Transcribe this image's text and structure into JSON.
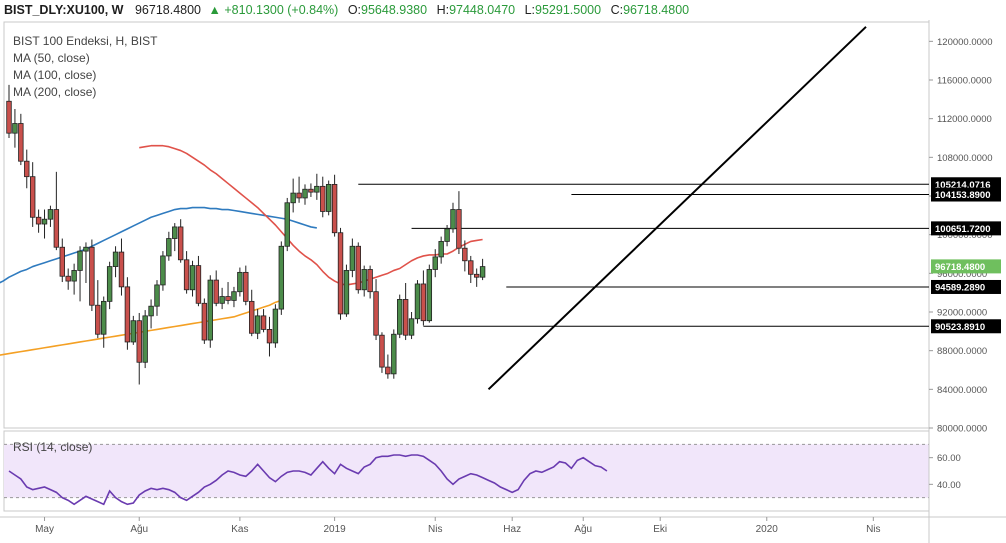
{
  "header": {
    "symbol": "BIST_DLY:XU100, W",
    "last": "96718.4800",
    "change": "+810.1300 (+0.84%)",
    "open_label": "O:",
    "open": "95648.9380",
    "high_label": "H:",
    "high": "97448.0470",
    "low_label": "L:",
    "low": "95291.5000",
    "close_label": "C:",
    "close": "96718.4800"
  },
  "legend": {
    "title": "BIST 100 Endeksi, H, BIST",
    "ma50": "MA (50, close)",
    "ma100": "MA (100, close)",
    "ma200": "MA (200, close)",
    "rsi": "RSI (14, close)"
  },
  "colors": {
    "up": "#4c8c4a",
    "down": "#c9504c",
    "ma50": "#e0524a",
    "ma100": "#2f7bbf",
    "ma200": "#f4a024",
    "rsi": "#6a3bb0",
    "rsi_band": "#f1e6fa",
    "last_tag": "#6fbf5e",
    "accent_green": "#2a9a3a"
  },
  "chart_data": {
    "type": "candlestick",
    "xlabel": "",
    "ylabel": "",
    "ylim": [
      80000,
      122000
    ],
    "y_ticks": [
      80000,
      84000,
      88000,
      92000,
      96000,
      100000,
      104000,
      108000,
      112000,
      116000,
      120000
    ],
    "y_tick_labels": [
      "80000.0000",
      "84000.0000",
      "88000.0000",
      "92000.0000",
      "96000.0000",
      "100000.0000",
      "104000.0000",
      "108000.0000",
      "112000.0000",
      "116000.0000",
      "120000.0000"
    ],
    "x_tick_labels": [
      {
        "i": 6,
        "label": "May"
      },
      {
        "i": 22,
        "label": "Ağu"
      },
      {
        "i": 39,
        "label": "Kas"
      },
      {
        "i": 55,
        "label": "2019"
      },
      {
        "i": 72,
        "label": "Nis"
      },
      {
        "i": 85,
        "label": "Haz"
      },
      {
        "i": 97,
        "label": "Ağu"
      },
      {
        "i": 110,
        "label": "Eki"
      },
      {
        "i": 128,
        "label": "2020"
      },
      {
        "i": 146,
        "label": "Nis"
      }
    ],
    "candles": [
      [
        113800,
        115500,
        110000,
        110500
      ],
      [
        110500,
        113000,
        109000,
        111500
      ],
      [
        111500,
        112500,
        107200,
        107600
      ],
      [
        107600,
        108800,
        104800,
        106000
      ],
      [
        106000,
        107500,
        100800,
        101800
      ],
      [
        101800,
        102600,
        100200,
        101100
      ],
      [
        101100,
        102600,
        99600,
        101600
      ],
      [
        101600,
        103000,
        100800,
        102600
      ],
      [
        102600,
        106500,
        98400,
        98700
      ],
      [
        98700,
        99600,
        95100,
        95700
      ],
      [
        95700,
        96500,
        94300,
        95200
      ],
      [
        95200,
        97000,
        93800,
        96300
      ],
      [
        96300,
        98800,
        93100,
        98300
      ],
      [
        98300,
        99200,
        95000,
        98700
      ],
      [
        98700,
        99500,
        92100,
        92700
      ],
      [
        92700,
        95300,
        89300,
        89700
      ],
      [
        89700,
        93600,
        88300,
        93100
      ],
      [
        93100,
        97200,
        92300,
        96700
      ],
      [
        96700,
        98800,
        95600,
        98200
      ],
      [
        98200,
        99600,
        93700,
        94600
      ],
      [
        94600,
        95600,
        88100,
        88900
      ],
      [
        88900,
        91600,
        88600,
        91100
      ],
      [
        91100,
        91900,
        84500,
        86800
      ],
      [
        86800,
        92200,
        86200,
        91600
      ],
      [
        91600,
        93300,
        90300,
        92600
      ],
      [
        92600,
        95300,
        91600,
        94800
      ],
      [
        94800,
        98300,
        94200,
        97800
      ],
      [
        97800,
        100300,
        97300,
        99600
      ],
      [
        99600,
        101200,
        98300,
        100800
      ],
      [
        100800,
        101600,
        97100,
        97400
      ],
      [
        97400,
        98300,
        93900,
        94300
      ],
      [
        94300,
        97300,
        93600,
        96800
      ],
      [
        96800,
        97800,
        92600,
        92900
      ],
      [
        92900,
        93400,
        88700,
        89100
      ],
      [
        89100,
        95800,
        88300,
        95300
      ],
      [
        95300,
        96300,
        92600,
        92900
      ],
      [
        92900,
        94500,
        92300,
        93600
      ],
      [
        93600,
        95100,
        92800,
        93200
      ],
      [
        93200,
        94600,
        92500,
        94100
      ],
      [
        94100,
        96600,
        93600,
        96100
      ],
      [
        96100,
        96800,
        92700,
        93100
      ],
      [
        93100,
        94300,
        89500,
        89800
      ],
      [
        89800,
        92300,
        89200,
        91600
      ],
      [
        91600,
        92300,
        89900,
        90200
      ],
      [
        90200,
        91500,
        87400,
        88800
      ],
      [
        88800,
        92800,
        88300,
        92300
      ],
      [
        92300,
        99300,
        91700,
        98800
      ],
      [
        98800,
        103800,
        98300,
        103300
      ],
      [
        103300,
        105800,
        102300,
        104300
      ],
      [
        104300,
        106000,
        103300,
        103800
      ],
      [
        103800,
        105200,
        103100,
        104700
      ],
      [
        104700,
        105300,
        103900,
        104400
      ],
      [
        104400,
        106300,
        103600,
        105000
      ],
      [
        105000,
        106000,
        101800,
        102400
      ],
      [
        102400,
        105600,
        102000,
        105200
      ],
      [
        105200,
        106200,
        99800,
        100200
      ],
      [
        100200,
        100700,
        91200,
        91800
      ],
      [
        91800,
        96900,
        91500,
        96300
      ],
      [
        96300,
        99600,
        95600,
        98800
      ],
      [
        98800,
        99200,
        93900,
        94300
      ],
      [
        94300,
        96800,
        93600,
        96400
      ],
      [
        96400,
        96800,
        93400,
        94100
      ],
      [
        94100,
        95400,
        89100,
        89600
      ],
      [
        89600,
        89900,
        85700,
        86300
      ],
      [
        86300,
        87600,
        85100,
        85600
      ],
      [
        85600,
        90200,
        85100,
        89700
      ],
      [
        89700,
        93800,
        89300,
        93300
      ],
      [
        93300,
        95000,
        89100,
        89600
      ],
      [
        89600,
        92000,
        89200,
        91300
      ],
      [
        91300,
        95300,
        90800,
        94900
      ],
      [
        94900,
        96300,
        90600,
        91100
      ],
      [
        91100,
        96900,
        90900,
        96400
      ],
      [
        96400,
        98500,
        95600,
        97700
      ],
      [
        97700,
        99800,
        97000,
        99300
      ],
      [
        99300,
        101000,
        98800,
        100600
      ],
      [
        100600,
        103300,
        100200,
        102600
      ],
      [
        102600,
        104500,
        98000,
        98600
      ],
      [
        98600,
        99400,
        96200,
        97300
      ],
      [
        97300,
        97800,
        95000,
        95900
      ],
      [
        95900,
        96500,
        94600,
        95600
      ],
      [
        95600,
        97500,
        95300,
        96700
      ]
    ],
    "series": [
      {
        "name": "MA (50, close)",
        "values": [
          109000,
          109100,
          109200,
          109200,
          109200,
          109100,
          108900,
          108700,
          108400,
          108000,
          107600,
          107200,
          106700,
          106300,
          105800,
          105300,
          104800,
          104300,
          103800,
          103300,
          102800,
          102200,
          101600,
          101000,
          100300,
          99600,
          98900,
          98300,
          97800,
          97400,
          96900,
          96200,
          95600,
          95200,
          94900,
          94800,
          94900,
          95000,
          95200,
          95400,
          95600,
          95800,
          96000,
          96300,
          96500,
          96900,
          97300,
          97600,
          97800,
          97900,
          97900,
          98000,
          98000,
          98300,
          98700,
          99000,
          99300,
          99400,
          99500
        ]
      },
      {
        "name": "MA (100, close)",
        "values": [
          94900,
          95200,
          95600,
          95900,
          96200,
          96400,
          96700,
          96900,
          97100,
          97300,
          97500,
          97700,
          97900,
          98100,
          98300,
          98500,
          98800,
          99100,
          99400,
          99700,
          100000,
          100300,
          100600,
          100900,
          101200,
          101500,
          101800,
          102000,
          102200,
          102400,
          102600,
          102700,
          102700,
          102800,
          102800,
          102800,
          102700,
          102700,
          102600,
          102600,
          102500,
          102400,
          102300,
          102200,
          102100,
          102000,
          101900,
          101800,
          101700,
          101600,
          101400,
          101200,
          101000,
          100800,
          100700
        ]
      },
      {
        "name": "MA (200, close)",
        "values": [
          87500,
          87600,
          87700,
          87800,
          87900,
          88000,
          88100,
          88200,
          88300,
          88400,
          88500,
          88600,
          88700,
          88800,
          88900,
          89000,
          89100,
          89200,
          89300,
          89400,
          89500,
          89600,
          89700,
          89800,
          89900,
          90000,
          90100,
          90200,
          90300,
          90400,
          90500,
          90600,
          90700,
          90800,
          90900,
          91000,
          91100,
          91200,
          91300,
          91400,
          91500,
          91700,
          91900,
          92100,
          92300,
          92500,
          92700,
          93000,
          93200
        ]
      },
      {
        "name": "RSI (14, close)",
        "values": [
          50,
          47,
          44,
          38,
          36,
          37,
          38,
          36,
          34,
          30,
          28,
          25,
          28,
          31,
          29,
          27,
          25,
          35,
          30,
          27,
          25,
          26,
          32,
          35,
          37,
          36,
          37,
          36,
          34,
          30,
          28,
          31,
          34,
          38,
          40,
          43,
          47,
          50,
          49,
          47,
          46,
          50,
          55,
          50,
          45,
          42,
          46,
          49,
          50,
          50,
          49,
          47,
          52,
          57,
          52,
          48,
          55,
          52,
          50,
          48,
          53,
          55,
          60,
          61,
          61,
          62,
          62,
          61,
          62,
          62,
          61,
          58,
          55,
          50,
          44,
          40,
          44,
          46,
          48,
          47,
          45,
          43,
          41,
          38,
          36,
          34,
          36,
          43,
          48,
          50,
          49,
          51,
          53,
          57,
          56,
          52,
          58,
          60,
          57,
          54,
          53,
          50
        ]
      },
      {
        "name": "Trend line",
        "values": [
          84000,
          121500
        ]
      }
    ],
    "rsi_ylim": [
      20,
      80
    ],
    "rsi_ticks": [
      40,
      60
    ],
    "rsi_tick_labels": [
      "40.00",
      "60.00"
    ],
    "rsi_band": [
      30,
      70
    ],
    "levels": [
      {
        "value": 105214.0716,
        "label": "105214.0716"
      },
      {
        "value": 104153.89,
        "label": "104153.8900"
      },
      {
        "value": 100651.72,
        "label": "100651.7200"
      },
      {
        "value": 94589.289,
        "label": "94589.2890"
      },
      {
        "value": 90523.891,
        "label": "90523.8910"
      }
    ],
    "last_price_label": "96718.4800",
    "last_price": 96718.48
  }
}
